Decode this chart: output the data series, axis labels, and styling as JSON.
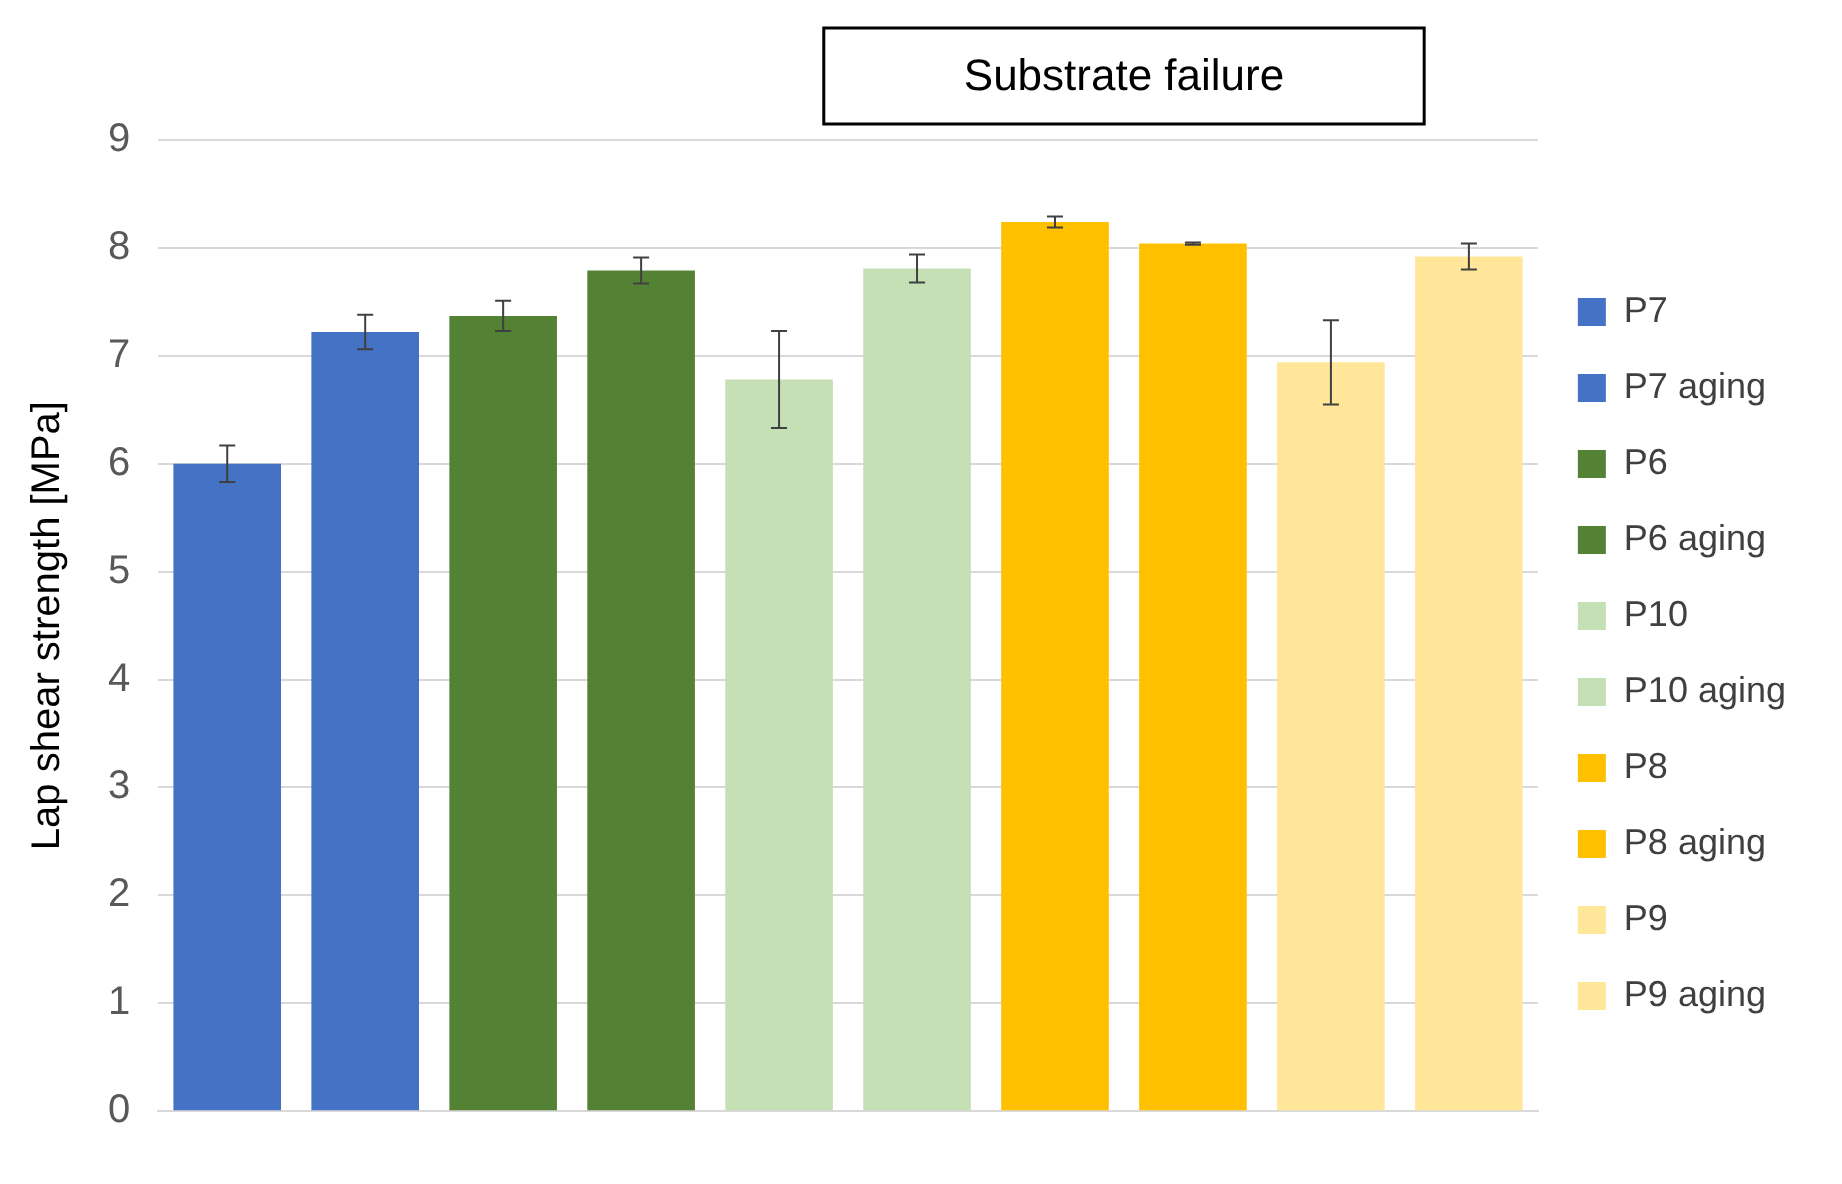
{
  "chart_data": {
    "type": "bar",
    "ylabel": "Lap shear strength [MPa]",
    "categories": [
      null,
      null,
      null,
      null,
      null,
      null,
      null,
      null,
      null,
      null
    ],
    "series": [
      {
        "name": "P7",
        "color": "#4472c4",
        "values": [
          6.0,
          null,
          null,
          null,
          null,
          null,
          null,
          null,
          null,
          null
        ],
        "errors": [
          0.17,
          null,
          null,
          null,
          null,
          null,
          null,
          null,
          null,
          null
        ]
      },
      {
        "name": "P7 aging",
        "color": "#4472c4",
        "values": [
          null,
          7.22,
          null,
          null,
          null,
          null,
          null,
          null,
          null,
          null
        ],
        "errors": [
          null,
          0.16,
          null,
          null,
          null,
          null,
          null,
          null,
          null,
          null
        ]
      },
      {
        "name": "P6",
        "color": "#548235",
        "values": [
          null,
          null,
          7.37,
          null,
          null,
          null,
          null,
          null,
          null,
          null
        ],
        "errors": [
          null,
          null,
          0.14,
          null,
          null,
          null,
          null,
          null,
          null,
          null
        ]
      },
      {
        "name": "P6 aging",
        "color": "#548235",
        "values": [
          null,
          null,
          null,
          7.79,
          null,
          null,
          null,
          null,
          null,
          null
        ],
        "errors": [
          null,
          null,
          null,
          0.12,
          null,
          null,
          null,
          null,
          null,
          null
        ]
      },
      {
        "name": "P10",
        "color": "#c5e0b4",
        "values": [
          null,
          null,
          null,
          null,
          6.78,
          null,
          null,
          null,
          null,
          null
        ],
        "errors": [
          null,
          null,
          null,
          null,
          0.45,
          null,
          null,
          null,
          null,
          null
        ]
      },
      {
        "name": "P10 aging",
        "color": "#c5e0b4",
        "values": [
          null,
          null,
          null,
          null,
          null,
          7.81,
          null,
          null,
          null,
          null
        ],
        "errors": [
          null,
          null,
          null,
          null,
          null,
          0.13,
          null,
          null,
          null,
          null
        ]
      },
      {
        "name": "P8",
        "color": "#ffc000",
        "values": [
          null,
          null,
          null,
          null,
          null,
          null,
          8.24,
          null,
          null,
          null
        ],
        "errors": [
          null,
          null,
          null,
          null,
          null,
          null,
          0.05,
          null,
          null,
          null
        ]
      },
      {
        "name": "P8 aging",
        "color": "#ffc000",
        "values": [
          null,
          null,
          null,
          null,
          null,
          null,
          null,
          8.04,
          null,
          null
        ],
        "errors": [
          null,
          null,
          null,
          null,
          null,
          null,
          null,
          0.01,
          null,
          null
        ]
      },
      {
        "name": "P9",
        "color": "#ffe699",
        "values": [
          null,
          null,
          null,
          null,
          null,
          null,
          null,
          null,
          6.94,
          null
        ],
        "errors": [
          null,
          null,
          null,
          null,
          null,
          null,
          null,
          null,
          0.39,
          null
        ]
      },
      {
        "name": "P9 aging",
        "color": "#ffe699",
        "values": [
          null,
          null,
          null,
          null,
          null,
          null,
          null,
          null,
          null,
          7.92
        ],
        "errors": [
          null,
          null,
          null,
          null,
          null,
          null,
          null,
          null,
          null,
          0.12
        ]
      }
    ],
    "ylim": [
      0,
      9
    ],
    "yticks": [
      0,
      1,
      2,
      3,
      4,
      5,
      6,
      7,
      8,
      9
    ],
    "grid": "y",
    "legend": "right",
    "annotations": [
      "Substrate failure"
    ]
  }
}
